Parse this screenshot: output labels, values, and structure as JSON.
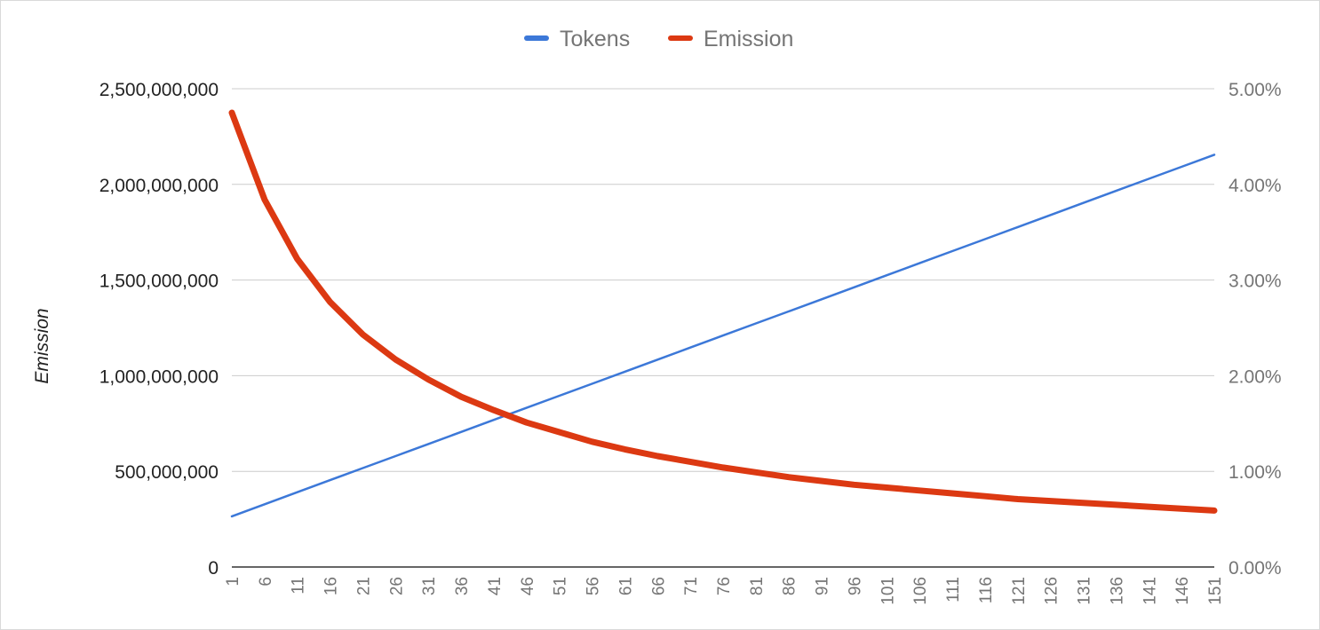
{
  "chart_data": {
    "type": "line",
    "title": "",
    "xlabel": "",
    "ylabel": "Emission",
    "y2label": "",
    "legend_position": "top",
    "grid": true,
    "x": [
      1,
      6,
      11,
      16,
      21,
      26,
      31,
      36,
      41,
      46,
      51,
      56,
      61,
      66,
      71,
      76,
      81,
      86,
      91,
      96,
      101,
      106,
      111,
      116,
      121,
      126,
      131,
      136,
      141,
      146,
      151
    ],
    "x_tick_labels": [
      "1",
      "6",
      "11",
      "16",
      "21",
      "26",
      "31",
      "36",
      "41",
      "46",
      "51",
      "56",
      "61",
      "66",
      "71",
      "76",
      "81",
      "86",
      "91",
      "96",
      "101",
      "106",
      "111",
      "116",
      "121",
      "126",
      "131",
      "136",
      "141",
      "146",
      "151"
    ],
    "ylim": [
      0,
      2500000000
    ],
    "y_tick_labels": [
      "0",
      "500,000,000",
      "1,000,000,000",
      "1,500,000,000",
      "2,000,000,000",
      "2,500,000,000"
    ],
    "y2lim": [
      0,
      0.05
    ],
    "y2_tick_labels": [
      "0.00%",
      "1.00%",
      "2.00%",
      "3.00%",
      "4.00%",
      "5.00%"
    ],
    "series": [
      {
        "name": "Tokens",
        "axis": "left",
        "color": "#3c78d8",
        "values": [
          265000000,
          328000000,
          391000000,
          454000000,
          517000000,
          580000000,
          643000000,
          706000000,
          769000000,
          832000000,
          895000000,
          958000000,
          1021000000,
          1084000000,
          1147000000,
          1210000000,
          1273000000,
          1336000000,
          1399000000,
          1462000000,
          1525000000,
          1588000000,
          1651000000,
          1714000000,
          1777000000,
          1840000000,
          1903000000,
          1966000000,
          2029000000,
          2092000000,
          2155000000
        ]
      },
      {
        "name": "Emission",
        "axis": "right",
        "color": "#dc3912",
        "values": [
          0.0475,
          0.0384,
          0.0322,
          0.0277,
          0.0243,
          0.0217,
          0.0196,
          0.0178,
          0.0164,
          0.0151,
          0.0141,
          0.0131,
          0.0123,
          0.0116,
          0.011,
          0.0104,
          0.0099,
          0.0094,
          0.009,
          0.0086,
          0.0083,
          0.008,
          0.0077,
          0.0074,
          0.0071,
          0.0069,
          0.0067,
          0.0065,
          0.0063,
          0.0061,
          0.0059
        ]
      }
    ]
  }
}
